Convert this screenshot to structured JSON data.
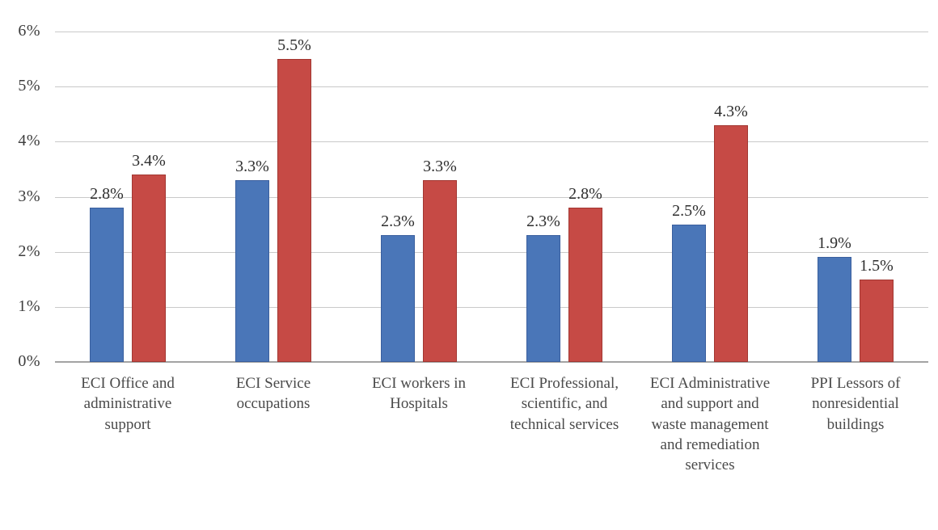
{
  "chart_data": {
    "type": "bar",
    "categories": [
      "ECI Office and administrative support",
      "ECI Service occupations",
      "ECI workers in Hospitals",
      "ECI Professional, scientific, and technical services",
      "ECI Administrative and support and waste management and remediation services",
      "PPI Lessors of nonresidential buildings"
    ],
    "series": [
      {
        "name": "blue",
        "color": "#4A76B8",
        "border_color": "#3A5F9E",
        "values": [
          2.8,
          3.3,
          2.3,
          2.3,
          2.5,
          1.9
        ],
        "labels": [
          "2.8%",
          "3.3%",
          "2.3%",
          "2.3%",
          "2.5%",
          "1.9%"
        ]
      },
      {
        "name": "red",
        "color": "#C64A45",
        "border_color": "#A23732",
        "values": [
          3.4,
          5.5,
          3.3,
          2.8,
          4.3,
          1.5
        ],
        "labels": [
          "3.4%",
          "5.5%",
          "3.3%",
          "2.8%",
          "4.3%",
          "1.5%"
        ]
      }
    ],
    "y_ticks": [
      "0%",
      "1%",
      "2%",
      "3%",
      "4%",
      "5%",
      "6%"
    ],
    "ylim": [
      0,
      6
    ],
    "grid": true,
    "legend": false
  },
  "colors": {
    "gridline": "#c9c9c9",
    "axis_line": "#a3a3a3",
    "value_label_text": "#2e2e2e",
    "tick_label_text": "#3d3d3d",
    "category_label_text": "#4a4a4a",
    "background": "#ffffff"
  }
}
